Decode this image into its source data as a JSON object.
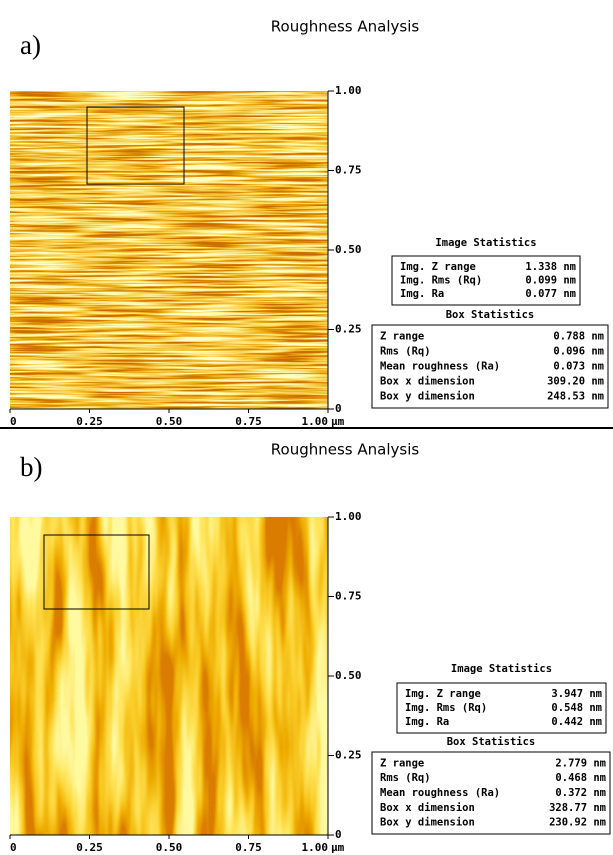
{
  "panels": [
    {
      "label": "a)",
      "title": "Roughness Analysis",
      "y_ticks": [
        "1.00",
        "0.75",
        "0.50",
        "0.25",
        "0"
      ],
      "x_ticks": [
        "0",
        "0.25",
        "0.50",
        "0.75",
        "1.00"
      ],
      "x_unit": "µm",
      "image_stats": {
        "heading": "Image Statistics",
        "rows": [
          [
            "Img. Z range",
            "1.338 nm"
          ],
          [
            "Img. Rms (Rq)",
            "0.099 nm"
          ],
          [
            "Img. Ra",
            "0.077 nm"
          ]
        ]
      },
      "box_stats": {
        "heading": "Box Statistics",
        "rows": [
          [
            "Z range",
            "0.788 nm"
          ],
          [
            "Rms (Rq)",
            "0.096 nm"
          ],
          [
            "Mean roughness (Ra)",
            "0.073 nm"
          ],
          [
            "Box x dimension",
            "309.20 nm"
          ],
          [
            "Box y dimension",
            "248.53 nm"
          ]
        ]
      }
    },
    {
      "label": "b)",
      "title": "Roughness Analysis",
      "y_ticks": [
        "1.00",
        "0.75",
        "0.50",
        "0.25",
        "0"
      ],
      "x_ticks": [
        "0",
        "0.25",
        "0.50",
        "0.75",
        "1.00"
      ],
      "x_unit": "µm",
      "image_stats": {
        "heading": "Image Statistics",
        "rows": [
          [
            "Img. Z range",
            "3.947 nm"
          ],
          [
            "Img. Rms (Rq)",
            "0.548 nm"
          ],
          [
            "Img. Ra",
            "0.442 nm"
          ]
        ]
      },
      "box_stats": {
        "heading": "Box Statistics",
        "rows": [
          [
            "Z range",
            "2.779 nm"
          ],
          [
            "Rms (Rq)",
            "0.468 nm"
          ],
          [
            "Mean roughness (Ra)",
            "0.372 nm"
          ],
          [
            "Box x dimension",
            "328.77 nm"
          ],
          [
            "Box y dimension",
            "230.92 nm"
          ]
        ]
      }
    }
  ]
}
